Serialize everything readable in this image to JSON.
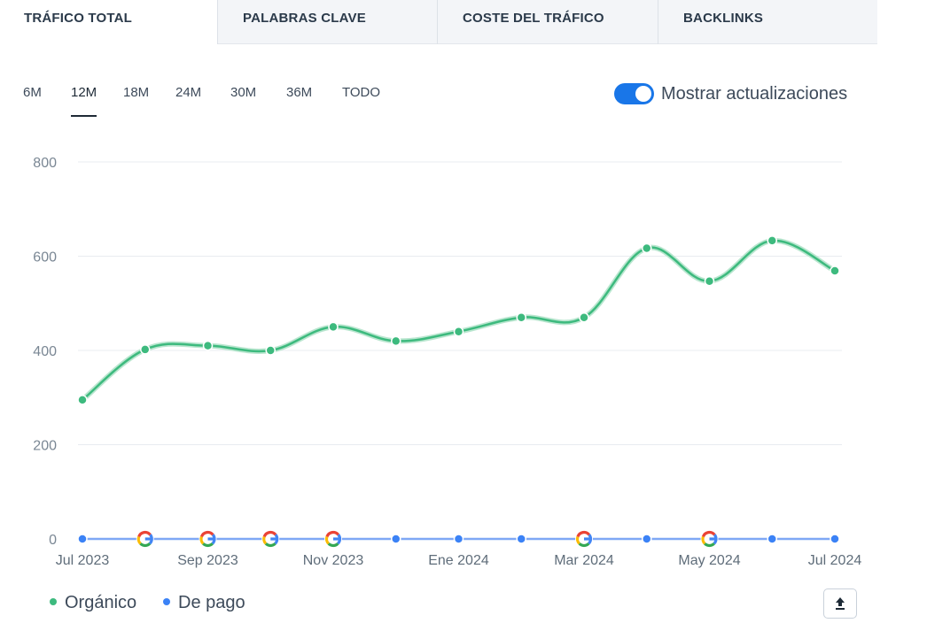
{
  "tabs": [
    {
      "label": "TRÁFICO TOTAL",
      "active": true
    },
    {
      "label": "PALABRAS CLAVE",
      "active": false
    },
    {
      "label": "COSTE DEL TRÁFICO",
      "active": false
    },
    {
      "label": "BACKLINKS",
      "active": false
    }
  ],
  "periods": [
    {
      "label": "6M",
      "active": false
    },
    {
      "label": "12M",
      "active": true
    },
    {
      "label": "18M",
      "active": false
    },
    {
      "label": "24M",
      "active": false
    },
    {
      "label": "30M",
      "active": false
    },
    {
      "label": "36M",
      "active": false
    },
    {
      "label": "TODO",
      "active": false
    }
  ],
  "toggle": {
    "label": "Mostrar actualizaciones",
    "on": true
  },
  "legend": [
    {
      "label": "Orgánico",
      "color": "#3dba7e"
    },
    {
      "label": "De pago",
      "color": "#3b82f6"
    }
  ],
  "colors": {
    "organic": "#3dba7e",
    "paid": "#3b82f6",
    "accent": "#1976e8"
  },
  "chart_data": {
    "type": "line",
    "x": [
      "2023-07",
      "2023-08",
      "2023-09",
      "2023-10",
      "2023-11",
      "2023-12",
      "2024-01",
      "2024-02",
      "2024-03",
      "2024-04",
      "2024-05",
      "2024-06",
      "2024-07"
    ],
    "x_tick_labels": [
      {
        "index": 0,
        "label": "Jul 2023"
      },
      {
        "index": 2,
        "label": "Sep 2023"
      },
      {
        "index": 4,
        "label": "Nov 2023"
      },
      {
        "index": 6,
        "label": "Ene 2024"
      },
      {
        "index": 8,
        "label": "Mar 2024"
      },
      {
        "index": 10,
        "label": "May 2024"
      },
      {
        "index": 12,
        "label": "Jul 2024"
      }
    ],
    "series": [
      {
        "name": "Orgánico",
        "values": [
          295,
          402,
          410,
          400,
          450,
          420,
          440,
          470,
          470,
          617,
          547,
          633,
          569
        ]
      },
      {
        "name": "De pago",
        "values": [
          0,
          0,
          0,
          0,
          0,
          0,
          0,
          0,
          0,
          0,
          0,
          0,
          0
        ]
      }
    ],
    "update_markers": [
      1,
      2,
      3,
      4,
      8,
      10
    ],
    "update_marker_icon": "google-update-icon",
    "ylim": [
      0,
      800
    ],
    "yticks": [
      0,
      200,
      400,
      600,
      800
    ],
    "grid": true,
    "xlabel": "",
    "ylabel": "",
    "title": ""
  },
  "export_icon": "upload-icon"
}
